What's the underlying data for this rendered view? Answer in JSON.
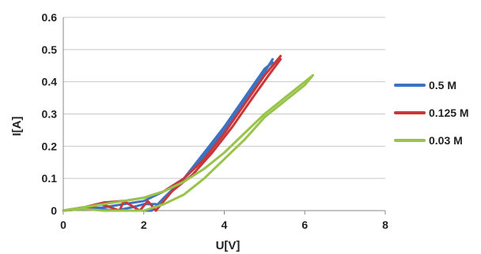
{
  "chart_data": {
    "type": "line",
    "xlabel": "U[V]",
    "ylabel": "I[A]",
    "xlim": [
      0,
      8
    ],
    "ylim": [
      0,
      0.6
    ],
    "x_ticks": [
      "0",
      "2",
      "4",
      "6",
      "8"
    ],
    "y_ticks": [
      "0",
      "0.1",
      "0.2",
      "0.3",
      "0.4",
      "0.5",
      "0.6"
    ],
    "grid": "horizontal",
    "legend": "right",
    "series": [
      {
        "name": "0.5 M",
        "color": "#3b73c2",
        "lines": [
          [
            [
              0,
              0
            ],
            [
              0.5,
              0.005
            ],
            [
              1,
              0.01
            ],
            [
              1.5,
              0.02
            ],
            [
              2,
              0.03
            ],
            [
              2.5,
              0.06
            ],
            [
              3,
              0.1
            ],
            [
              3.5,
              0.17
            ],
            [
              4,
              0.25
            ],
            [
              4.5,
              0.34
            ],
            [
              5,
              0.43
            ],
            [
              5.2,
              0.47
            ]
          ],
          [
            [
              2,
              0.0
            ],
            [
              2.2,
              0.0
            ],
            [
              2.5,
              0.04
            ],
            [
              3,
              0.1
            ],
            [
              3.5,
              0.18
            ],
            [
              4,
              0.26
            ],
            [
              4.5,
              0.35
            ],
            [
              5,
              0.44
            ],
            [
              5.2,
              0.46
            ]
          ],
          [
            [
              0,
              0
            ],
            [
              0.5,
              0.01
            ],
            [
              0.9,
              0.005
            ],
            [
              1.3,
              0.0
            ],
            [
              1.7,
              0.01
            ],
            [
              2.0,
              0.02
            ],
            [
              2.3,
              0.02
            ]
          ]
        ]
      },
      {
        "name": "0.125 M",
        "color": "#c8373a",
        "lines": [
          [
            [
              0,
              0
            ],
            [
              0.5,
              0.01
            ],
            [
              1,
              0.025
            ],
            [
              1.5,
              0.03
            ],
            [
              2,
              0.04
            ],
            [
              2.5,
              0.06
            ],
            [
              3,
              0.1
            ],
            [
              3.5,
              0.16
            ],
            [
              4,
              0.24
            ],
            [
              4.5,
              0.33
            ],
            [
              5,
              0.42
            ],
            [
              5.4,
              0.48
            ]
          ],
          [
            [
              0,
              0
            ],
            [
              0.5,
              0.005
            ],
            [
              0.95,
              0.02
            ],
            [
              1.4,
              0.0
            ],
            [
              1.5,
              0.03
            ],
            [
              1.9,
              0.0
            ],
            [
              2.1,
              0.03
            ],
            [
              2.3,
              0.0
            ],
            [
              2.7,
              0.06
            ],
            [
              3.2,
              0.11
            ],
            [
              3.7,
              0.18
            ],
            [
              4.2,
              0.26
            ],
            [
              4.7,
              0.35
            ],
            [
              5.1,
              0.42
            ],
            [
              5.4,
              0.47
            ]
          ]
        ]
      },
      {
        "name": "0.03 M",
        "color": "#99c44b",
        "lines": [
          [
            [
              0,
              0
            ],
            [
              0.5,
              0.005
            ],
            [
              1,
              0.0
            ],
            [
              1.5,
              0.0
            ],
            [
              2,
              0.0
            ],
            [
              2.5,
              0.02
            ],
            [
              3,
              0.05
            ],
            [
              3.5,
              0.1
            ],
            [
              4,
              0.16
            ],
            [
              4.5,
              0.22
            ],
            [
              5,
              0.29
            ],
            [
              5.5,
              0.34
            ],
            [
              6,
              0.39
            ],
            [
              6.2,
              0.42
            ]
          ],
          [
            [
              0,
              0
            ],
            [
              0.5,
              0.01
            ],
            [
              1,
              0.02
            ],
            [
              1.5,
              0.03
            ],
            [
              2,
              0.04
            ],
            [
              2.5,
              0.06
            ],
            [
              3,
              0.09
            ],
            [
              3.5,
              0.13
            ],
            [
              4,
              0.18
            ],
            [
              4.5,
              0.24
            ],
            [
              5,
              0.3
            ],
            [
              5.5,
              0.35
            ],
            [
              6,
              0.4
            ],
            [
              6.2,
              0.42
            ]
          ]
        ]
      }
    ]
  }
}
